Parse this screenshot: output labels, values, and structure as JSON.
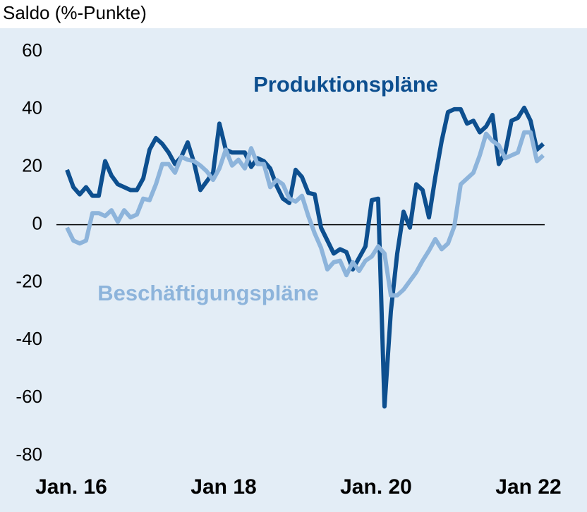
{
  "chart_data": {
    "type": "line",
    "y_label": "Saldo (%-Punkte)",
    "categories": [
      "Jan. 16",
      null,
      null,
      null,
      null,
      null,
      null,
      null,
      null,
      null,
      null,
      null,
      null,
      null,
      null,
      null,
      null,
      null,
      null,
      null,
      null,
      null,
      null,
      null,
      "Jan 18",
      null,
      null,
      null,
      null,
      null,
      null,
      null,
      null,
      null,
      null,
      null,
      null,
      null,
      null,
      null,
      null,
      null,
      null,
      null,
      null,
      null,
      null,
      null,
      "Jan. 20",
      null,
      null,
      null,
      null,
      null,
      null,
      null,
      null,
      null,
      null,
      null,
      null,
      null,
      null,
      null,
      null,
      null,
      null,
      null,
      null,
      null,
      null,
      null,
      "Jan 22",
      null,
      null,
      null
    ],
    "series": [
      {
        "name": "Produktionspläne",
        "color": "#0d4f8f",
        "values": [
          19,
          13,
          10.5,
          13,
          10,
          10,
          22,
          17,
          14,
          13,
          12,
          12,
          16,
          26,
          30,
          28,
          25,
          21,
          23.5,
          28.5,
          21.5,
          12,
          15,
          18,
          35,
          26,
          25,
          25,
          25,
          20,
          23,
          22,
          19.5,
          13.5,
          9,
          7.5,
          19,
          16.5,
          11,
          10.5,
          -1,
          -5.5,
          -10,
          -8.5,
          -9.5,
          -15.5,
          -11.5,
          -7.5,
          8.5,
          9,
          -63,
          -30,
          -10,
          4.5,
          -1,
          14,
          12,
          2.5,
          16.5,
          29,
          39,
          40,
          40,
          35,
          36,
          32,
          34,
          38,
          21,
          25,
          36,
          37,
          40.5,
          36,
          26,
          28
        ]
      },
      {
        "name": "Beschäftigungspläne",
        "color": "#8db4db",
        "values": [
          -1,
          -5.5,
          -6.5,
          -5.5,
          4,
          4,
          3,
          5,
          1,
          5,
          2.5,
          3.5,
          9,
          8.5,
          14,
          21,
          21,
          18,
          23.5,
          22.5,
          22,
          20.5,
          18.5,
          15.5,
          19.5,
          26,
          20.5,
          22.5,
          19.5,
          26.5,
          21,
          21,
          13,
          15.5,
          14,
          9,
          8,
          10,
          3,
          -3,
          -8,
          -15.5,
          -13,
          -12.5,
          -17.5,
          -13,
          -16,
          -12.5,
          -11,
          -7.5,
          -10,
          -24.5,
          -24.5,
          -22.5,
          -19.5,
          -16.5,
          -12.5,
          -9,
          -5,
          -8.5,
          -6.5,
          -0.5,
          14,
          16,
          18,
          24,
          31.5,
          29,
          27.5,
          23,
          24,
          25,
          32,
          32,
          22,
          24
        ]
      }
    ],
    "ylim": [
      -80,
      60
    ],
    "yticks": [
      -80,
      -60,
      -40,
      -20,
      0,
      20,
      40,
      60
    ],
    "grid": false
  }
}
